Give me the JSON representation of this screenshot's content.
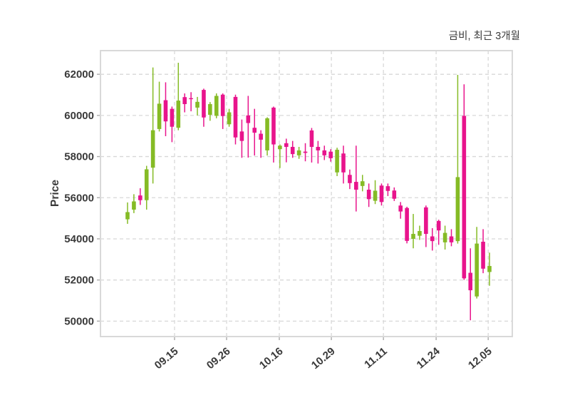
{
  "title": "금비, 최근 3개월",
  "chart_data": {
    "type": "candlestick",
    "title": "금비, 최근 3개월",
    "xlabel": "",
    "ylabel": "Price",
    "grid": true,
    "legend": "none",
    "ylim": [
      49250,
      63150
    ],
    "yticks": [
      50000,
      52000,
      54000,
      56000,
      58000,
      60000,
      62000
    ],
    "xticks": [
      {
        "label": "09.15",
        "i": 7.4
      },
      {
        "label": "09.26",
        "i": 15.6
      },
      {
        "label": "10.16",
        "i": 23.9
      },
      {
        "label": "10.29",
        "i": 32.1
      },
      {
        "label": "11.11",
        "i": 40.3
      },
      {
        "label": "11.24",
        "i": 48.6
      },
      {
        "label": "12.05",
        "i": 56.8
      }
    ],
    "colors": {
      "up": "#85bb25",
      "down": "#e8148c",
      "grid": "#d8d8d8",
      "border": "#d9d9d9",
      "tick": "#ababab",
      "text": "#3a3a3a",
      "plot_bg": "#ffffff",
      "fig_bg": "#ffffff"
    },
    "candles_format": [
      "open",
      "high",
      "low",
      "close"
    ],
    "candles": [
      [
        54950,
        55770,
        54730,
        55300
      ],
      [
        55420,
        56170,
        55250,
        55820
      ],
      [
        56110,
        56460,
        55650,
        55880
      ],
      [
        55880,
        57550,
        55420,
        57380
      ],
      [
        57460,
        62330,
        56690,
        59280
      ],
      [
        59340,
        61640,
        59220,
        60570
      ],
      [
        60740,
        61610,
        58990,
        59710
      ],
      [
        60320,
        60430,
        58700,
        59450
      ],
      [
        59400,
        62560,
        59280,
        60720
      ],
      [
        60890,
        61070,
        60150,
        60550
      ],
      [
        60840,
        61130,
        60200,
        60790
      ],
      [
        60380,
        60900,
        60000,
        60660
      ],
      [
        61240,
        61300,
        59450,
        59900
      ],
      [
        60030,
        60650,
        59740,
        60550
      ],
      [
        59980,
        61070,
        59860,
        60950
      ],
      [
        61010,
        61070,
        59340,
        59970
      ],
      [
        59570,
        60320,
        59450,
        60150
      ],
      [
        60900,
        61010,
        58590,
        58930
      ],
      [
        59220,
        59800,
        57940,
        58760
      ],
      [
        60000,
        60950,
        57950,
        59630
      ],
      [
        59400,
        60320,
        58050,
        59160
      ],
      [
        59110,
        59280,
        57940,
        58820
      ],
      [
        58300,
        59910,
        58050,
        59860
      ],
      [
        60380,
        60430,
        57710,
        58590
      ],
      [
        58360,
        58590,
        57440,
        58530
      ],
      [
        58650,
        58870,
        57720,
        58470
      ],
      [
        58470,
        58760,
        57940,
        58120
      ],
      [
        58060,
        58470,
        57890,
        58300
      ],
      [
        58240,
        58650,
        57770,
        58180
      ],
      [
        59270,
        59390,
        57710,
        58470
      ],
      [
        58470,
        58760,
        57660,
        58300
      ],
      [
        58300,
        58530,
        57830,
        58060
      ],
      [
        58240,
        58360,
        57750,
        57920
      ],
      [
        57230,
        58430,
        57050,
        58330
      ],
      [
        58150,
        58530,
        56690,
        57230
      ],
      [
        57110,
        57370,
        56420,
        56710
      ],
      [
        56770,
        58530,
        55330,
        56390
      ],
      [
        56570,
        57110,
        56310,
        56800
      ],
      [
        56390,
        56690,
        55550,
        55930
      ],
      [
        55850,
        56850,
        55690,
        56340
      ],
      [
        56590,
        56690,
        55620,
        55790
      ],
      [
        56560,
        56690,
        56080,
        56330
      ],
      [
        56350,
        56500,
        55840,
        55950
      ],
      [
        55620,
        55790,
        54980,
        55330
      ],
      [
        55500,
        55560,
        53780,
        53900
      ],
      [
        54000,
        55210,
        53540,
        54240
      ],
      [
        54150,
        54640,
        53950,
        54380
      ],
      [
        55530,
        55620,
        53600,
        54240
      ],
      [
        54120,
        54520,
        53430,
        53890
      ],
      [
        54870,
        54930,
        53710,
        54410
      ],
      [
        53830,
        54640,
        53480,
        54290
      ],
      [
        54120,
        54470,
        53640,
        53830
      ],
      [
        53890,
        61970,
        53770,
        57000
      ],
      [
        59980,
        61510,
        52000,
        52080
      ],
      [
        52350,
        53540,
        50040,
        51500
      ],
      [
        51200,
        54580,
        51100,
        53770
      ],
      [
        53860,
        54470,
        52330,
        52550
      ],
      [
        52390,
        53330,
        51720,
        52680
      ]
    ]
  }
}
